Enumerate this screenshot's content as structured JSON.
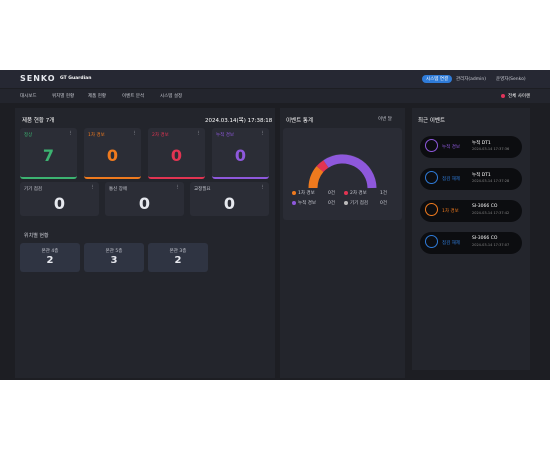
{
  "header": {
    "logo": "SENKO",
    "app": "GT Guardian",
    "connect": "시스템 연결",
    "user1": "관리자(admin)",
    "user2": "운영자(Senko)"
  },
  "nav": {
    "items": [
      "대시보드",
      "위치별 현황",
      "제품 현황",
      "이벤트 분석",
      "시스템 설정"
    ],
    "siren": "전체 사이렌"
  },
  "status": {
    "title": "제품 현황 7개",
    "datetime": "2024.03.14(목) 17:38:18",
    "cards": [
      {
        "label": "정상",
        "value": 7
      },
      {
        "label": "1차 경보",
        "value": 0
      },
      {
        "label": "2차 경보",
        "value": 0
      },
      {
        "label": "누적 경보",
        "value": 0
      }
    ],
    "cards2": [
      {
        "label": "기기 점검",
        "value": 0
      },
      {
        "label": "통신 장애",
        "value": 0
      },
      {
        "label": "교정필요",
        "value": 0
      }
    ]
  },
  "locations": {
    "title": "위치별 현황",
    "items": [
      {
        "label": "본관 4층",
        "value": 2
      },
      {
        "label": "본관 5층",
        "value": 3
      },
      {
        "label": "본관 3층",
        "value": 2
      }
    ]
  },
  "stats": {
    "title": "이벤트 통계",
    "period": "이번 달",
    "legend": [
      {
        "label": "1차 경보",
        "count": "0건"
      },
      {
        "label": "2차 경보",
        "count": "1건"
      },
      {
        "label": "누적 경보",
        "count": "0건"
      },
      {
        "label": "기기 점검",
        "count": "0건"
      }
    ]
  },
  "events": {
    "title": "최근 이벤트",
    "items": [
      {
        "type": "누적 경보",
        "name": "누적 DT1",
        "time": "2024-03-14 17:37:36"
      },
      {
        "type": "점검 해제",
        "name": "누적 DT1",
        "time": "2024-03-14 17:37:28"
      },
      {
        "type": "1차 경보",
        "name": "SI-3066 CO",
        "time": "2024-03-14 17:37:42"
      },
      {
        "type": "점검 해제",
        "name": "SI-3066 CO",
        "time": "2024-03-14 17:37:07"
      }
    ]
  }
}
